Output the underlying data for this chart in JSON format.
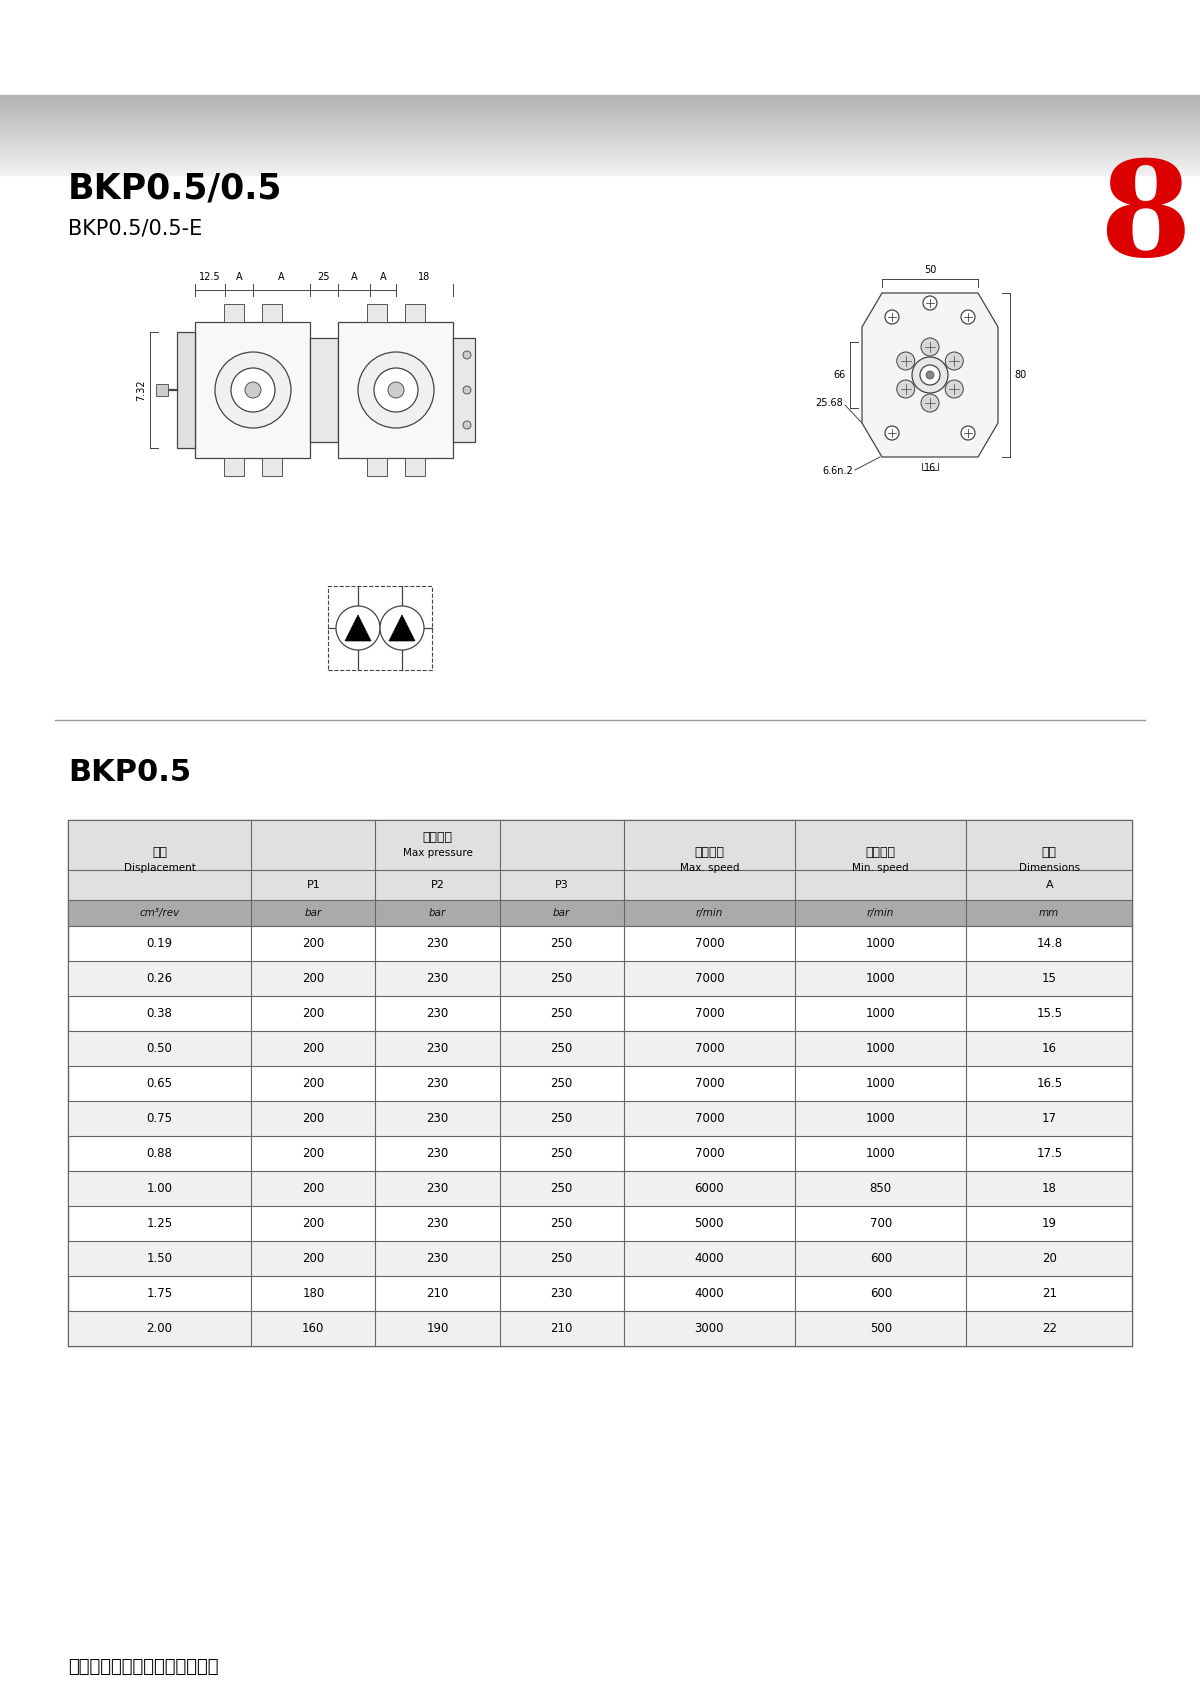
{
  "page_title": "BKP0.5/0.5",
  "page_subtitle": "BKP0.5/0.5-E",
  "page_number": "8",
  "section_title": "BKP0.5",
  "footer_text": "淮安舒克贝塔流体技术有限公司",
  "col_headers_cn": [
    "排量",
    "最大压力",
    "",
    "",
    "最高转速",
    "最低转速",
    "尺寸"
  ],
  "col_headers_en": [
    "Displacement",
    "Max pressure",
    "",
    "",
    "Max. speed",
    "Min. speed",
    "Dimensions"
  ],
  "col_units": [
    "cm3/rev",
    "bar",
    "bar",
    "bar",
    "r/min",
    "r/min",
    "mm"
  ],
  "table_data": [
    [
      "0.19",
      "200",
      "230",
      "250",
      "7000",
      "1000",
      "14.8"
    ],
    [
      "0.26",
      "200",
      "230",
      "250",
      "7000",
      "1000",
      "15"
    ],
    [
      "0.38",
      "200",
      "230",
      "250",
      "7000",
      "1000",
      "15.5"
    ],
    [
      "0.50",
      "200",
      "230",
      "250",
      "7000",
      "1000",
      "16"
    ],
    [
      "0.65",
      "200",
      "230",
      "250",
      "7000",
      "1000",
      "16.5"
    ],
    [
      "0.75",
      "200",
      "230",
      "250",
      "7000",
      "1000",
      "17"
    ],
    [
      "0.88",
      "200",
      "230",
      "250",
      "7000",
      "1000",
      "17.5"
    ],
    [
      "1.00",
      "200",
      "230",
      "250",
      "6000",
      "850",
      "18"
    ],
    [
      "1.25",
      "200",
      "230",
      "250",
      "5000",
      "700",
      "19"
    ],
    [
      "1.50",
      "200",
      "230",
      "250",
      "4000",
      "600",
      "20"
    ],
    [
      "1.75",
      "180",
      "210",
      "230",
      "4000",
      "600",
      "21"
    ],
    [
      "2.00",
      "160",
      "190",
      "210",
      "3000",
      "500",
      "22"
    ]
  ],
  "bg_color": "#ffffff",
  "text_color": "#000000",
  "red_color": "#dd0000",
  "line_color": "#444444",
  "header_gray": "#cccccc",
  "table_border_color": "#666666",
  "units_row_bg": "#aaaaaa",
  "header_row_bg": "#e0e0e0",
  "alt_row_bg": "#f0f0f0"
}
